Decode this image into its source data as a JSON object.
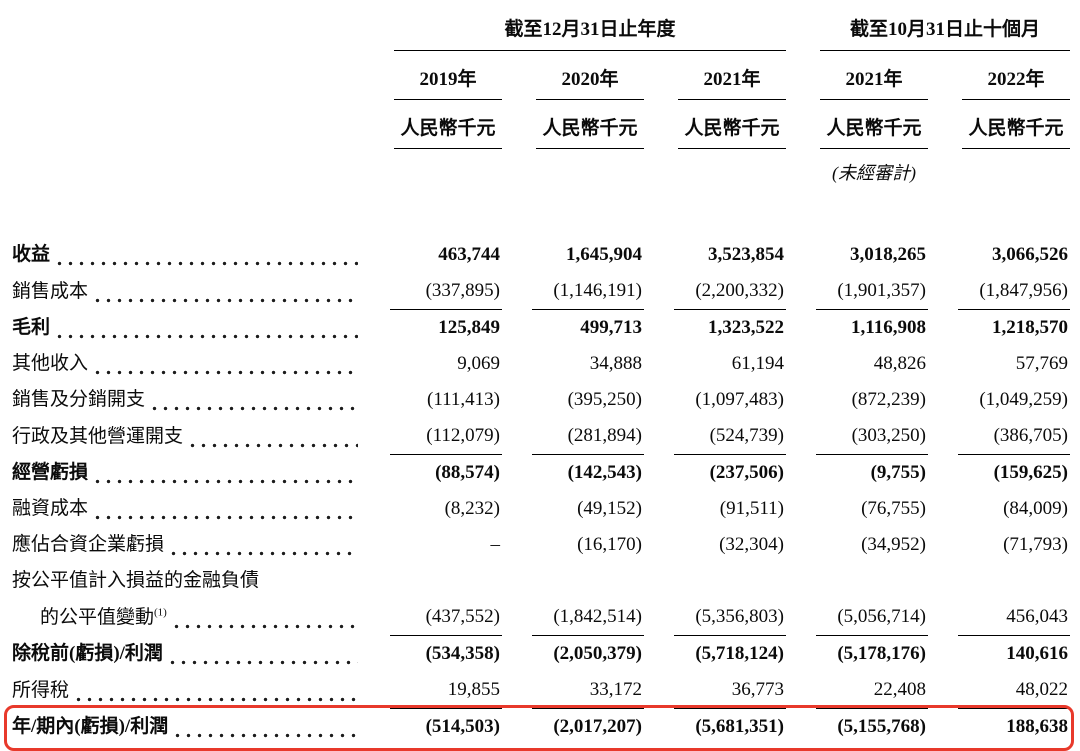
{
  "table": {
    "accent_red": "#e8392b",
    "col_groups": [
      {
        "title": "截至12月31日止年度"
      },
      {
        "title": "截至10月31日止十個月"
      }
    ],
    "columns": [
      {
        "year": "2019年",
        "unit": "人民幣千元",
        "note": ""
      },
      {
        "year": "2020年",
        "unit": "人民幣千元",
        "note": ""
      },
      {
        "year": "2021年",
        "unit": "人民幣千元",
        "note": ""
      },
      {
        "year": "2021年",
        "unit": "人民幣千元",
        "note": "(未經審計)"
      },
      {
        "year": "2022年",
        "unit": "人民幣千元",
        "note": ""
      }
    ],
    "rows": [
      {
        "label": "收益",
        "values": [
          "463,744",
          "1,645,904",
          "3,523,854",
          "3,018,265",
          "3,066,526"
        ]
      },
      {
        "label": "銷售成本",
        "values": [
          "(337,895)",
          "(1,146,191)",
          "(2,200,332)",
          "(1,901,357)",
          "(1,847,956)"
        ]
      },
      {
        "label": "毛利",
        "values": [
          "125,849",
          "499,713",
          "1,323,522",
          "1,116,908",
          "1,218,570"
        ]
      },
      {
        "label": "其他收入",
        "values": [
          "9,069",
          "34,888",
          "61,194",
          "48,826",
          "57,769"
        ]
      },
      {
        "label": "銷售及分銷開支",
        "values": [
          "(111,413)",
          "(395,250)",
          "(1,097,483)",
          "(872,239)",
          "(1,049,259)"
        ]
      },
      {
        "label": "行政及其他營運開支",
        "values": [
          "(112,079)",
          "(281,894)",
          "(524,739)",
          "(303,250)",
          "(386,705)"
        ]
      },
      {
        "label": "經營虧損",
        "values": [
          "(88,574)",
          "(142,543)",
          "(237,506)",
          "(9,755)",
          "(159,625)"
        ]
      },
      {
        "label": "融資成本",
        "values": [
          "(8,232)",
          "(49,152)",
          "(91,511)",
          "(76,755)",
          "(84,009)"
        ]
      },
      {
        "label": "應佔合資企業虧損",
        "values": [
          "–",
          "(16,170)",
          "(32,304)",
          "(34,952)",
          "(71,793)"
        ]
      },
      {
        "label": "按公平值計入損益的金融負債",
        "values": []
      },
      {
        "label": "的公平值變動",
        "sup": "(1)",
        "values": [
          "(437,552)",
          "(1,842,514)",
          "(5,356,803)",
          "(5,056,714)",
          "456,043"
        ]
      },
      {
        "label": "除稅前(虧損)/利潤",
        "values": [
          "(534,358)",
          "(2,050,379)",
          "(5,718,124)",
          "(5,178,176)",
          "140,616"
        ]
      },
      {
        "label": "所得稅",
        "values": [
          "19,855",
          "33,172",
          "36,773",
          "22,408",
          "48,022"
        ]
      },
      {
        "label": "年/期內(虧損)/利潤",
        "values": [
          "(514,503)",
          "(2,017,207)",
          "(5,681,351)",
          "(5,155,768)",
          "188,638"
        ]
      }
    ]
  }
}
